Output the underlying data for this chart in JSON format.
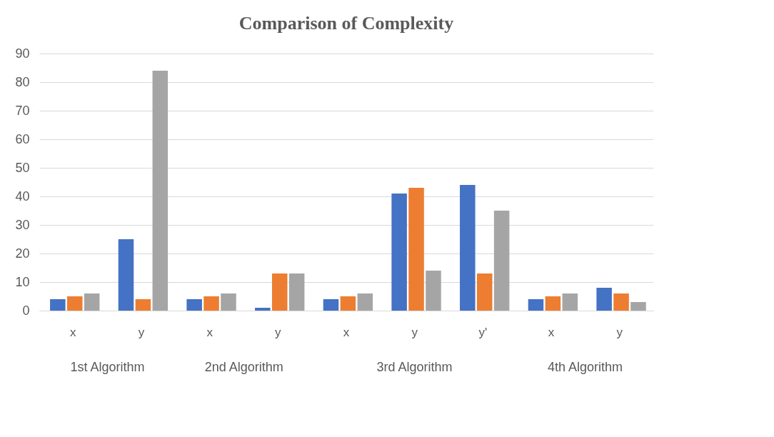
{
  "chart_data": {
    "type": "bar",
    "title": "Comparison of Complexity",
    "categories": [
      "x",
      "y",
      "x",
      "y",
      "x",
      "y",
      "y'",
      "x",
      "y"
    ],
    "series": [
      {
        "color": "#4472c4",
        "values": [
          4,
          25,
          4,
          1,
          4,
          41,
          44,
          4,
          8
        ]
      },
      {
        "color": "#ed7d31",
        "values": [
          5,
          4,
          5,
          13,
          5,
          43,
          13,
          5,
          6
        ]
      },
      {
        "color": "#a5a5a5",
        "values": [
          6,
          84,
          6,
          13,
          6,
          14,
          35,
          6,
          3
        ]
      }
    ],
    "ylim": [
      0,
      90
    ],
    "yticks": [
      0,
      10,
      20,
      30,
      40,
      50,
      60,
      70,
      80,
      90
    ],
    "annotations": [
      "1st Algorithm",
      "2nd Algorithm",
      "3rd Algorithm",
      "4th Algorithm"
    ],
    "grid": "y",
    "legend": false
  }
}
